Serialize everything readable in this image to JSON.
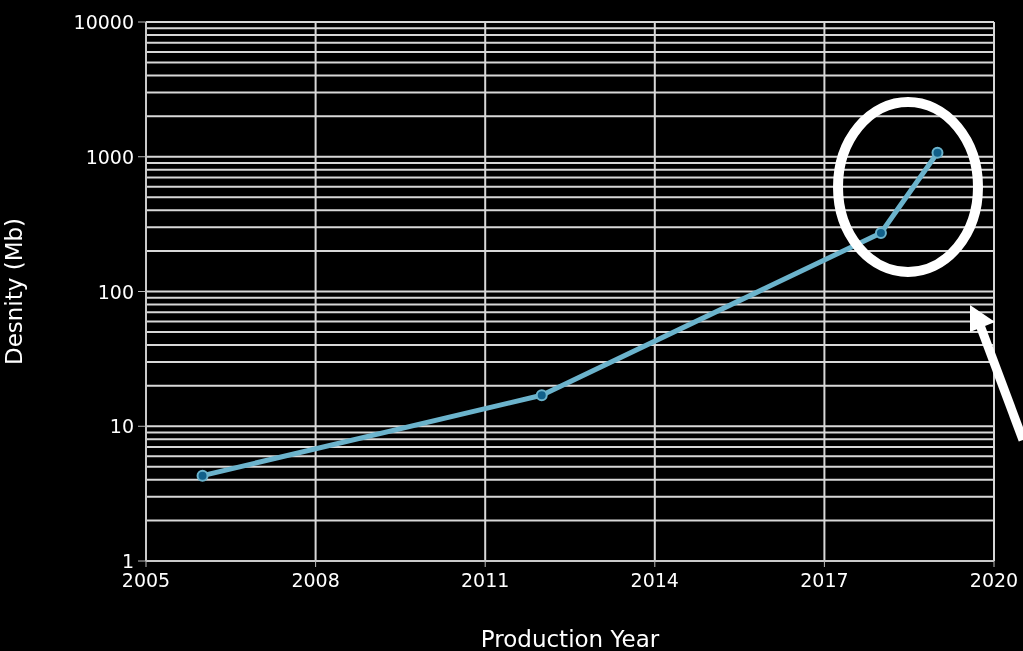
{
  "chart_data": {
    "type": "line",
    "xlabel": "Production Year",
    "ylabel": "Desnity (Mb)",
    "x": [
      2006,
      2012,
      2018,
      2019
    ],
    "series": [
      {
        "color": "#6bb3cc",
        "values": [
          4.3,
          17,
          272,
          1070
        ]
      }
    ],
    "xlim": [
      2005,
      2020
    ],
    "xticks": [
      2005,
      2008,
      2011,
      2014,
      2017,
      2020
    ],
    "ylim": [
      1,
      10000
    ],
    "yticks": [
      1,
      {
        "value": 2,
        "label": null
      },
      {
        "value": 3,
        "label": null
      },
      {
        "value": 4,
        "label": null
      },
      {
        "value": 5,
        "label": null
      },
      {
        "value": 6,
        "label": null
      },
      {
        "value": 7,
        "label": null
      },
      {
        "value": 8,
        "label": null
      },
      {
        "value": 9,
        "label": null
      },
      10,
      {
        "value": 20,
        "label": null
      },
      {
        "value": 30,
        "label": null
      },
      {
        "value": 40,
        "label": null
      },
      {
        "value": 50,
        "label": null
      },
      {
        "value": 60,
        "label": null
      },
      {
        "value": 70,
        "label": null
      },
      {
        "value": 80,
        "label": null
      },
      {
        "value": 90,
        "label": null
      },
      100,
      {
        "value": 200,
        "label": null
      },
      {
        "value": 300,
        "label": null
      },
      {
        "value": 400,
        "label": null
      },
      {
        "value": 500,
        "label": null
      },
      {
        "value": 600,
        "label": null
      },
      {
        "value": 700,
        "label": null
      },
      {
        "value": 800,
        "label": null
      },
      {
        "value": 900,
        "label": null
      },
      1000,
      {
        "value": 2000,
        "label": null
      },
      {
        "value": 3000,
        "label": null
      },
      {
        "value": 4000,
        "label": null
      },
      {
        "value": 5000,
        "label": null
      },
      {
        "value": 6000,
        "label": null
      },
      {
        "value": 7000,
        "label": null
      },
      {
        "value": 8000,
        "label": null
      },
      {
        "value": 9000,
        "label": null
      },
      10000
    ],
    "log": "y",
    "grid": true,
    "marker": "circle",
    "line_style": "solid"
  }
}
